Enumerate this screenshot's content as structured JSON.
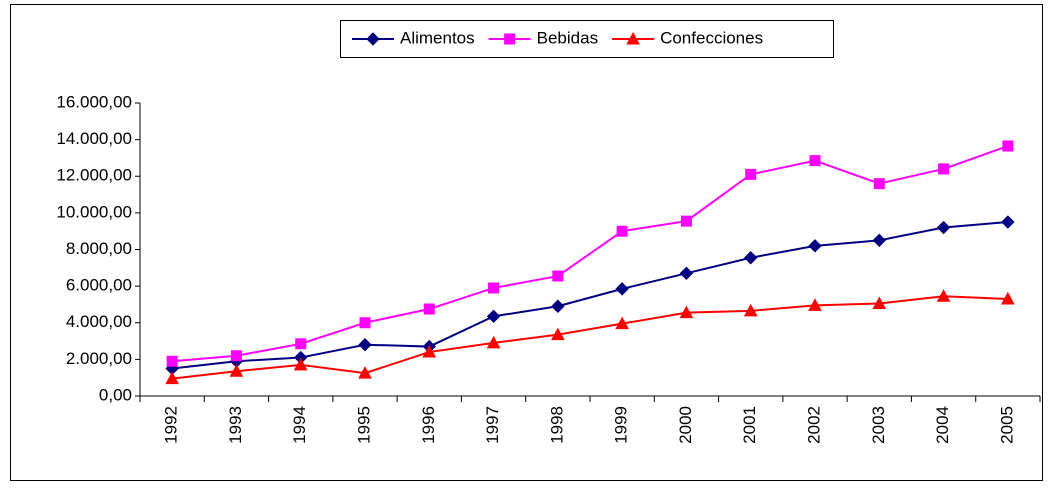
{
  "chart_data": {
    "type": "line",
    "categories": [
      "1992",
      "1993",
      "1994",
      "1995",
      "1996",
      "1997",
      "1998",
      "1999",
      "2000",
      "2001",
      "2002",
      "2003",
      "2004",
      "2005"
    ],
    "series": [
      {
        "name": "Alimentos",
        "color": "#000080",
        "marker": "diamond",
        "values": [
          1500,
          1900,
          2100,
          2800,
          2700,
          4350,
          4900,
          5850,
          6700,
          7550,
          8200,
          8500,
          9200,
          9500
        ]
      },
      {
        "name": "Bebidas",
        "color": "#ff00ff",
        "marker": "square",
        "values": [
          1900,
          2200,
          2850,
          4000,
          4750,
          5900,
          6550,
          9000,
          9550,
          12100,
          12850,
          11600,
          12400,
          13650
        ]
      },
      {
        "name": "Confecciones",
        "color": "#ff0000",
        "marker": "triangle",
        "values": [
          950,
          1350,
          1700,
          1250,
          2400,
          2900,
          3350,
          3950,
          4550,
          4650,
          4950,
          5050,
          5450,
          5300
        ]
      }
    ],
    "ylim": [
      0,
      16000
    ],
    "yticks": [
      {
        "value": 0,
        "label": "0,00"
      },
      {
        "value": 2000,
        "label": "2.000,00"
      },
      {
        "value": 4000,
        "label": "4.000,00"
      },
      {
        "value": 6000,
        "label": "6.000,00"
      },
      {
        "value": 8000,
        "label": "8.000,00"
      },
      {
        "value": 10000,
        "label": "10.000,00"
      },
      {
        "value": 12000,
        "label": "12.000,00"
      },
      {
        "value": 14000,
        "label": "14.000,00"
      },
      {
        "value": 16000,
        "label": "16.000,00"
      }
    ],
    "grid": false,
    "legend": "top"
  }
}
